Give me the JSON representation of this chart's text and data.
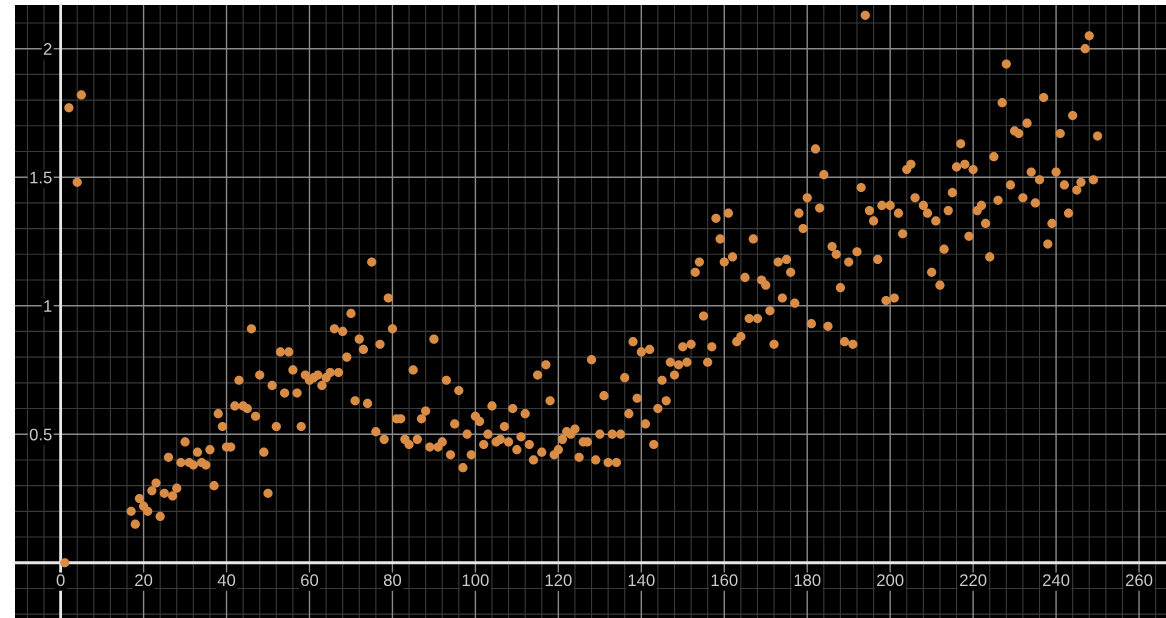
{
  "chart_data": {
    "type": "scatter",
    "x": [
      1,
      2,
      4,
      5,
      17,
      18,
      19,
      20,
      21,
      22,
      23,
      24,
      25,
      26,
      27,
      28,
      29,
      30,
      31,
      32,
      33,
      34,
      35,
      36,
      37,
      38,
      39,
      40,
      41,
      42,
      43,
      44,
      45,
      46,
      47,
      48,
      49,
      50,
      51,
      52,
      53,
      54,
      55,
      56,
      57,
      58,
      59,
      60,
      61,
      62,
      63,
      64,
      65,
      66,
      67,
      68,
      69,
      70,
      71,
      72,
      73,
      74,
      75,
      76,
      77,
      78,
      79,
      80,
      81,
      82,
      83,
      84,
      85,
      86,
      87,
      88,
      89,
      90,
      91,
      92,
      93,
      94,
      95,
      96,
      97,
      98,
      99,
      100,
      101,
      102,
      103,
      104,
      105,
      106,
      107,
      108,
      109,
      110,
      111,
      112,
      113,
      114,
      115,
      116,
      117,
      118,
      119,
      120,
      121,
      122,
      123,
      124,
      125,
      126,
      127,
      128,
      129,
      130,
      131,
      132,
      133,
      134,
      135,
      136,
      137,
      138,
      139,
      140,
      141,
      142,
      143,
      144,
      145,
      146,
      147,
      148,
      149,
      150,
      151,
      152,
      153,
      154,
      155,
      156,
      157,
      158,
      159,
      160,
      161,
      162,
      163,
      164,
      165,
      166,
      167,
      168,
      169,
      170,
      171,
      172,
      173,
      174,
      175,
      176,
      177,
      178,
      179,
      180,
      181,
      182,
      183,
      184,
      185,
      186,
      187,
      188,
      189,
      190,
      191,
      192,
      193,
      194,
      195,
      196,
      197,
      198,
      199,
      200,
      201,
      202,
      203,
      204,
      205,
      206,
      208,
      209,
      210,
      211,
      212,
      213,
      214,
      215,
      216,
      217,
      218,
      219,
      220,
      221,
      222,
      223,
      224,
      225,
      226,
      227,
      228,
      229,
      230,
      231,
      232,
      233,
      234,
      235,
      236,
      237,
      238,
      239,
      240,
      241,
      242,
      243,
      244,
      245,
      246,
      247,
      248,
      249,
      250
    ],
    "series": [
      {
        "color": "#d98c45",
        "values": [
          0.0,
          1.77,
          1.48,
          1.82,
          0.2,
          0.15,
          0.25,
          0.22,
          0.2,
          0.28,
          0.31,
          0.18,
          0.27,
          0.41,
          0.26,
          0.29,
          0.39,
          0.47,
          0.39,
          0.38,
          0.43,
          0.39,
          0.38,
          0.44,
          0.3,
          0.58,
          0.53,
          0.45,
          0.45,
          0.61,
          0.71,
          0.61,
          0.6,
          0.91,
          0.57,
          0.73,
          0.43,
          0.27,
          0.69,
          0.53,
          0.82,
          0.66,
          0.82,
          0.75,
          0.66,
          0.53,
          0.73,
          0.71,
          0.72,
          0.73,
          0.69,
          0.72,
          0.74,
          0.91,
          0.74,
          0.9,
          0.8,
          0.97,
          0.63,
          0.87,
          0.83,
          0.62,
          1.17,
          0.51,
          0.85,
          0.48,
          1.03,
          0.91,
          0.56,
          0.56,
          0.48,
          0.46,
          0.75,
          0.48,
          0.56,
          0.59,
          0.45,
          0.87,
          0.45,
          0.47,
          0.71,
          0.42,
          0.54,
          0.67,
          0.37,
          0.5,
          0.42,
          0.57,
          0.55,
          0.46,
          0.5,
          0.61,
          0.47,
          0.48,
          0.53,
          0.47,
          0.6,
          0.44,
          0.49,
          0.58,
          0.46,
          0.4,
          0.73,
          0.43,
          0.77,
          0.63,
          0.42,
          0.44,
          0.48,
          0.51,
          0.5,
          0.52,
          0.41,
          0.47,
          0.47,
          0.79,
          0.4,
          0.5,
          0.65,
          0.39,
          0.5,
          0.39,
          0.5,
          0.72,
          0.58,
          0.86,
          0.64,
          0.82,
          0.54,
          0.83,
          0.46,
          0.6,
          0.71,
          0.63,
          0.78,
          0.73,
          0.77,
          0.84,
          0.78,
          0.85,
          1.13,
          1.17,
          0.96,
          0.78,
          0.84,
          1.34,
          1.26,
          1.17,
          1.36,
          1.19,
          0.86,
          0.88,
          1.11,
          0.95,
          1.26,
          0.95,
          1.1,
          1.08,
          0.98,
          0.85,
          1.17,
          1.03,
          1.18,
          1.13,
          1.01,
          1.36,
          1.3,
          1.42,
          0.93,
          1.61,
          1.38,
          1.51,
          0.92,
          1.23,
          1.2,
          1.07,
          0.86,
          1.17,
          0.85,
          1.21,
          1.46,
          2.13,
          1.37,
          1.33,
          1.18,
          1.39,
          1.02,
          1.39,
          1.03,
          1.36,
          1.28,
          1.53,
          1.55,
          1.42,
          1.39,
          1.36,
          1.13,
          1.33,
          1.08,
          1.22,
          1.37,
          1.44,
          1.54,
          1.63,
          1.55,
          1.27,
          1.53,
          1.37,
          1.39,
          1.32,
          1.19,
          1.58,
          1.41,
          1.79,
          1.94,
          1.47,
          1.68,
          1.67,
          1.42,
          1.71,
          1.52,
          1.4,
          1.49,
          1.81,
          1.24,
          1.32,
          1.52,
          1.67,
          1.47,
          1.36,
          1.74,
          1.45,
          1.48,
          2.0,
          2.05,
          1.49,
          1.66
        ]
      }
    ],
    "xlim": [
      -11,
      266.5
    ],
    "ylim": [
      -0.215,
      2.17
    ],
    "xticks": [
      0,
      20,
      40,
      60,
      80,
      100,
      120,
      140,
      160,
      180,
      200,
      220,
      240,
      260
    ],
    "yticks": [
      {
        "value": 0,
        "label": null
      },
      0.5,
      1,
      1.5,
      2
    ],
    "grid": true,
    "marker": "circle"
  }
}
